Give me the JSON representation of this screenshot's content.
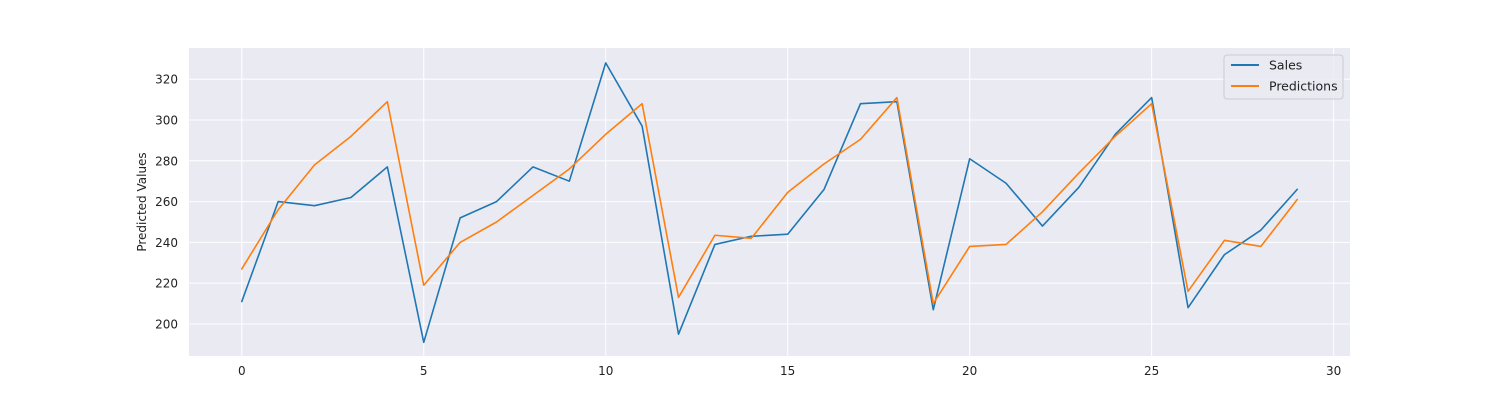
{
  "chart_data": {
    "type": "line",
    "title": "",
    "xlabel": "",
    "ylabel": "Predicted Values",
    "xlim": [
      -1.45,
      30.45
    ],
    "ylim": [
      184.3,
      335.3
    ],
    "xticks": [
      0,
      5,
      10,
      15,
      20,
      25,
      30
    ],
    "yticks": [
      200,
      220,
      240,
      260,
      280,
      300,
      320
    ],
    "grid": true,
    "legend_position": "top-right",
    "x": [
      0,
      1,
      2,
      3,
      4,
      5,
      6,
      7,
      8,
      9,
      10,
      11,
      12,
      13,
      14,
      15,
      16,
      17,
      18,
      19,
      20,
      21,
      22,
      23,
      24,
      25,
      26,
      27,
      28,
      29
    ],
    "series": [
      {
        "name": "Sales",
        "color": "#1f77b4",
        "values": [
          211,
          260,
          258,
          262,
          277,
          191,
          252,
          260,
          277,
          270,
          328,
          297,
          195,
          239,
          243,
          244,
          266,
          308,
          309,
          207,
          281,
          269,
          248,
          267,
          293,
          311,
          208,
          234,
          246,
          266
        ]
      },
      {
        "name": "Predictions",
        "color": "#ff7f0e",
        "values": [
          227,
          256,
          278,
          292,
          309,
          219,
          240,
          250,
          263,
          276,
          293,
          308,
          213,
          243.5,
          242,
          264.5,
          278.5,
          290.5,
          311,
          210,
          238,
          239,
          255,
          274,
          292,
          308,
          216,
          241,
          238,
          261
        ]
      }
    ]
  }
}
